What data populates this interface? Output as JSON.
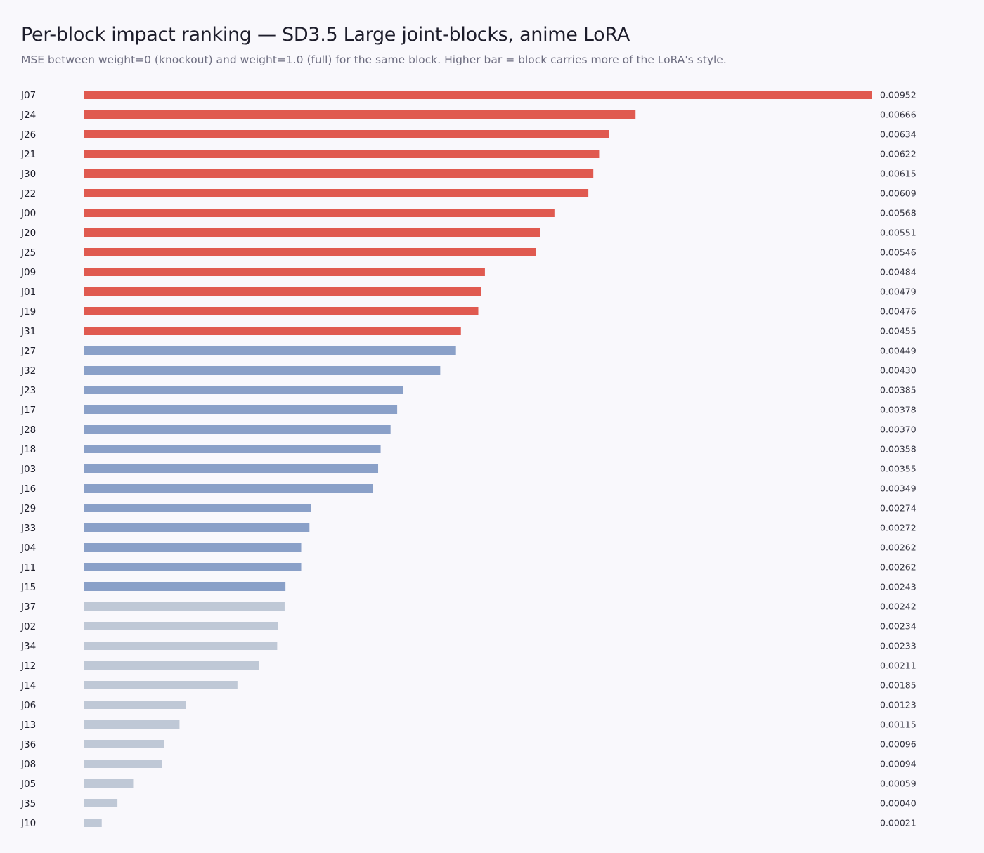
{
  "header": {
    "title": "Per-block impact ranking — SD3.5 Large joint-blocks, anime LoRA",
    "subtitle": "MSE between weight=0 (knockout) and weight=1.0 (full) for the same block. Higher bar = block carries more of the LoRA's style."
  },
  "colors": {
    "high": "#e05a50",
    "mid": "#8aa0c8",
    "low": "#bfc8d6",
    "background": "#f9f8fc"
  },
  "chart_data": {
    "type": "bar",
    "orientation": "horizontal",
    "title": "Per-block impact ranking — SD3.5 Large joint-blocks, anime LoRA",
    "subtitle": "MSE between weight=0 (knockout) and weight=1.0 (full) for the same block. Higher bar = block carries more of the LoRA's style.",
    "xlabel": "",
    "ylabel": "",
    "xlim": [
      0,
      0.00952
    ],
    "grid": false,
    "legend": "none",
    "categories": [
      "J07",
      "J24",
      "J26",
      "J21",
      "J30",
      "J22",
      "J00",
      "J20",
      "J25",
      "J09",
      "J01",
      "J19",
      "J31",
      "J27",
      "J32",
      "J23",
      "J17",
      "J28",
      "J18",
      "J03",
      "J16",
      "J29",
      "J33",
      "J04",
      "J11",
      "J15",
      "J37",
      "J02",
      "J34",
      "J12",
      "J14",
      "J06",
      "J13",
      "J36",
      "J08",
      "J05",
      "J35",
      "J10"
    ],
    "values": [
      0.00952,
      0.00666,
      0.00634,
      0.00622,
      0.00615,
      0.00609,
      0.00568,
      0.00551,
      0.00546,
      0.00484,
      0.00479,
      0.00476,
      0.00455,
      0.00449,
      0.0043,
      0.00385,
      0.00378,
      0.0037,
      0.00358,
      0.00355,
      0.00349,
      0.00274,
      0.00272,
      0.00262,
      0.00262,
      0.00243,
      0.00242,
      0.00234,
      0.00233,
      0.00211,
      0.00185,
      0.00123,
      0.00115,
      0.00096,
      0.00094,
      0.00059,
      0.0004,
      0.00021
    ],
    "value_labels": [
      "0.00952",
      "0.00666",
      "0.00634",
      "0.00622",
      "0.00615",
      "0.00609",
      "0.00568",
      "0.00551",
      "0.00546",
      "0.00484",
      "0.00479",
      "0.00476",
      "0.00455",
      "0.00449",
      "0.00430",
      "0.00385",
      "0.00378",
      "0.00370",
      "0.00358",
      "0.00355",
      "0.00349",
      "0.00274",
      "0.00272",
      "0.00262",
      "0.00262",
      "0.00243",
      "0.00242",
      "0.00234",
      "0.00233",
      "0.00211",
      "0.00185",
      "0.00123",
      "0.00115",
      "0.00096",
      "0.00094",
      "0.00059",
      "0.00040",
      "0.00021"
    ],
    "tiers": [
      "high",
      "high",
      "high",
      "high",
      "high",
      "high",
      "high",
      "high",
      "high",
      "high",
      "high",
      "high",
      "high",
      "mid",
      "mid",
      "mid",
      "mid",
      "mid",
      "mid",
      "mid",
      "mid",
      "mid",
      "mid",
      "mid",
      "mid",
      "mid",
      "low",
      "low",
      "low",
      "low",
      "low",
      "low",
      "low",
      "low",
      "low",
      "low",
      "low",
      "low"
    ]
  }
}
